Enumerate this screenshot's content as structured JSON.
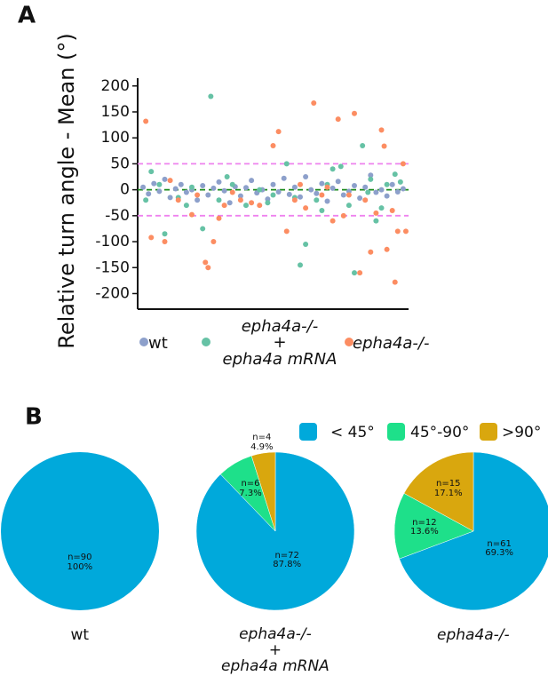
{
  "chart_data": [
    {
      "type": "scatter",
      "panel_label": "A",
      "ylabel": "Relative turn angle - Mean (°)",
      "xlim": [
        0,
        100
      ],
      "ylim": [
        -230,
        215
      ],
      "yticks": [
        -200,
        -150,
        -100,
        -50,
        0,
        50,
        100,
        150,
        200
      ],
      "hlines": [
        {
          "value": 50,
          "color": "#ee82ee"
        },
        {
          "value": -50,
          "color": "#ee82ee"
        },
        {
          "value": 0,
          "color": "#1a8a1a"
        }
      ],
      "series": [
        {
          "name": "wt",
          "color": "#8da0cb",
          "x": [
            2,
            4,
            6,
            8,
            10,
            12,
            14,
            16,
            18,
            20,
            22,
            24,
            26,
            28,
            30,
            32,
            34,
            36,
            38,
            40,
            42,
            44,
            46,
            48,
            50,
            52,
            54,
            56,
            58,
            60,
            62,
            64,
            66,
            68,
            70,
            72,
            74,
            76,
            78,
            80,
            82,
            84,
            86,
            88,
            90,
            92,
            94,
            96,
            98
          ],
          "values": [
            5,
            -8,
            12,
            -3,
            20,
            -15,
            2,
            10,
            -5,
            0,
            -20,
            8,
            -10,
            3,
            15,
            -2,
            -25,
            6,
            -12,
            4,
            18,
            -6,
            0,
            -18,
            10,
            -4,
            22,
            -9,
            5,
            -14,
            25,
            0,
            -7,
            12,
            -22,
            3,
            16,
            -10,
            -3,
            8,
            -16,
            5,
            28,
            -5,
            0,
            -12,
            10,
            -4,
            2
          ]
        },
        {
          "name": "epha4a-/-\n+\nepha4a mRNA",
          "color": "#66c2a5",
          "x": [
            3,
            5,
            8,
            10,
            15,
            18,
            20,
            24,
            27,
            30,
            33,
            35,
            40,
            45,
            48,
            50,
            55,
            58,
            60,
            62,
            66,
            68,
            70,
            72,
            75,
            78,
            80,
            83,
            85,
            86,
            88,
            90,
            92,
            95,
            97
          ],
          "values": [
            -20,
            35,
            10,
            -85,
            -15,
            -30,
            5,
            -75,
            180,
            -20,
            25,
            10,
            -30,
            0,
            -25,
            -10,
            50,
            -15,
            -145,
            -105,
            -20,
            -40,
            10,
            40,
            45,
            -30,
            -160,
            85,
            -5,
            20,
            -60,
            -35,
            10,
            30,
            15
          ]
        },
        {
          "name": "epha4a-/-",
          "color": "#fc8d62",
          "x": [
            3,
            5,
            10,
            12,
            15,
            20,
            22,
            25,
            26,
            28,
            30,
            32,
            35,
            38,
            42,
            45,
            50,
            52,
            55,
            58,
            60,
            62,
            65,
            68,
            70,
            72,
            74,
            76,
            78,
            80,
            82,
            84,
            86,
            88,
            90,
            91,
            92,
            94,
            95,
            96,
            98,
            99
          ],
          "values": [
            132,
            -92,
            -100,
            18,
            -20,
            -48,
            -10,
            -140,
            -150,
            -100,
            -55,
            -30,
            -5,
            -20,
            -25,
            -30,
            85,
            112,
            -80,
            -20,
            10,
            -35,
            167,
            -10,
            5,
            -60,
            136,
            -50,
            -10,
            147,
            -160,
            -20,
            -120,
            -45,
            115,
            84,
            -115,
            -40,
            -178,
            -80,
            50,
            -80
          ]
        }
      ]
    },
    {
      "type": "pie",
      "panel_label": "B",
      "categories": [
        "< 45°",
        "45°-90°",
        ">90°"
      ],
      "colors": [
        "#00a9db",
        "#1ee08a",
        "#d9a70e"
      ],
      "pies": [
        {
          "title": "wt",
          "values": [
            90
          ],
          "value_labels": [
            "n=90\n100%"
          ]
        },
        {
          "title": "epha4a-/-\n+\nepha4a mRNA",
          "values": [
            72,
            6,
            4
          ],
          "value_labels": [
            "n=72\n87.8%",
            "n=6\n7.3%",
            "n=4\n4.9%"
          ]
        },
        {
          "title": "epha4a-/-",
          "values": [
            61,
            12,
            15
          ],
          "value_labels": [
            "n=61\n69.3%",
            "n=12\n13.6%",
            "n=15\n17.1%"
          ]
        }
      ]
    }
  ]
}
